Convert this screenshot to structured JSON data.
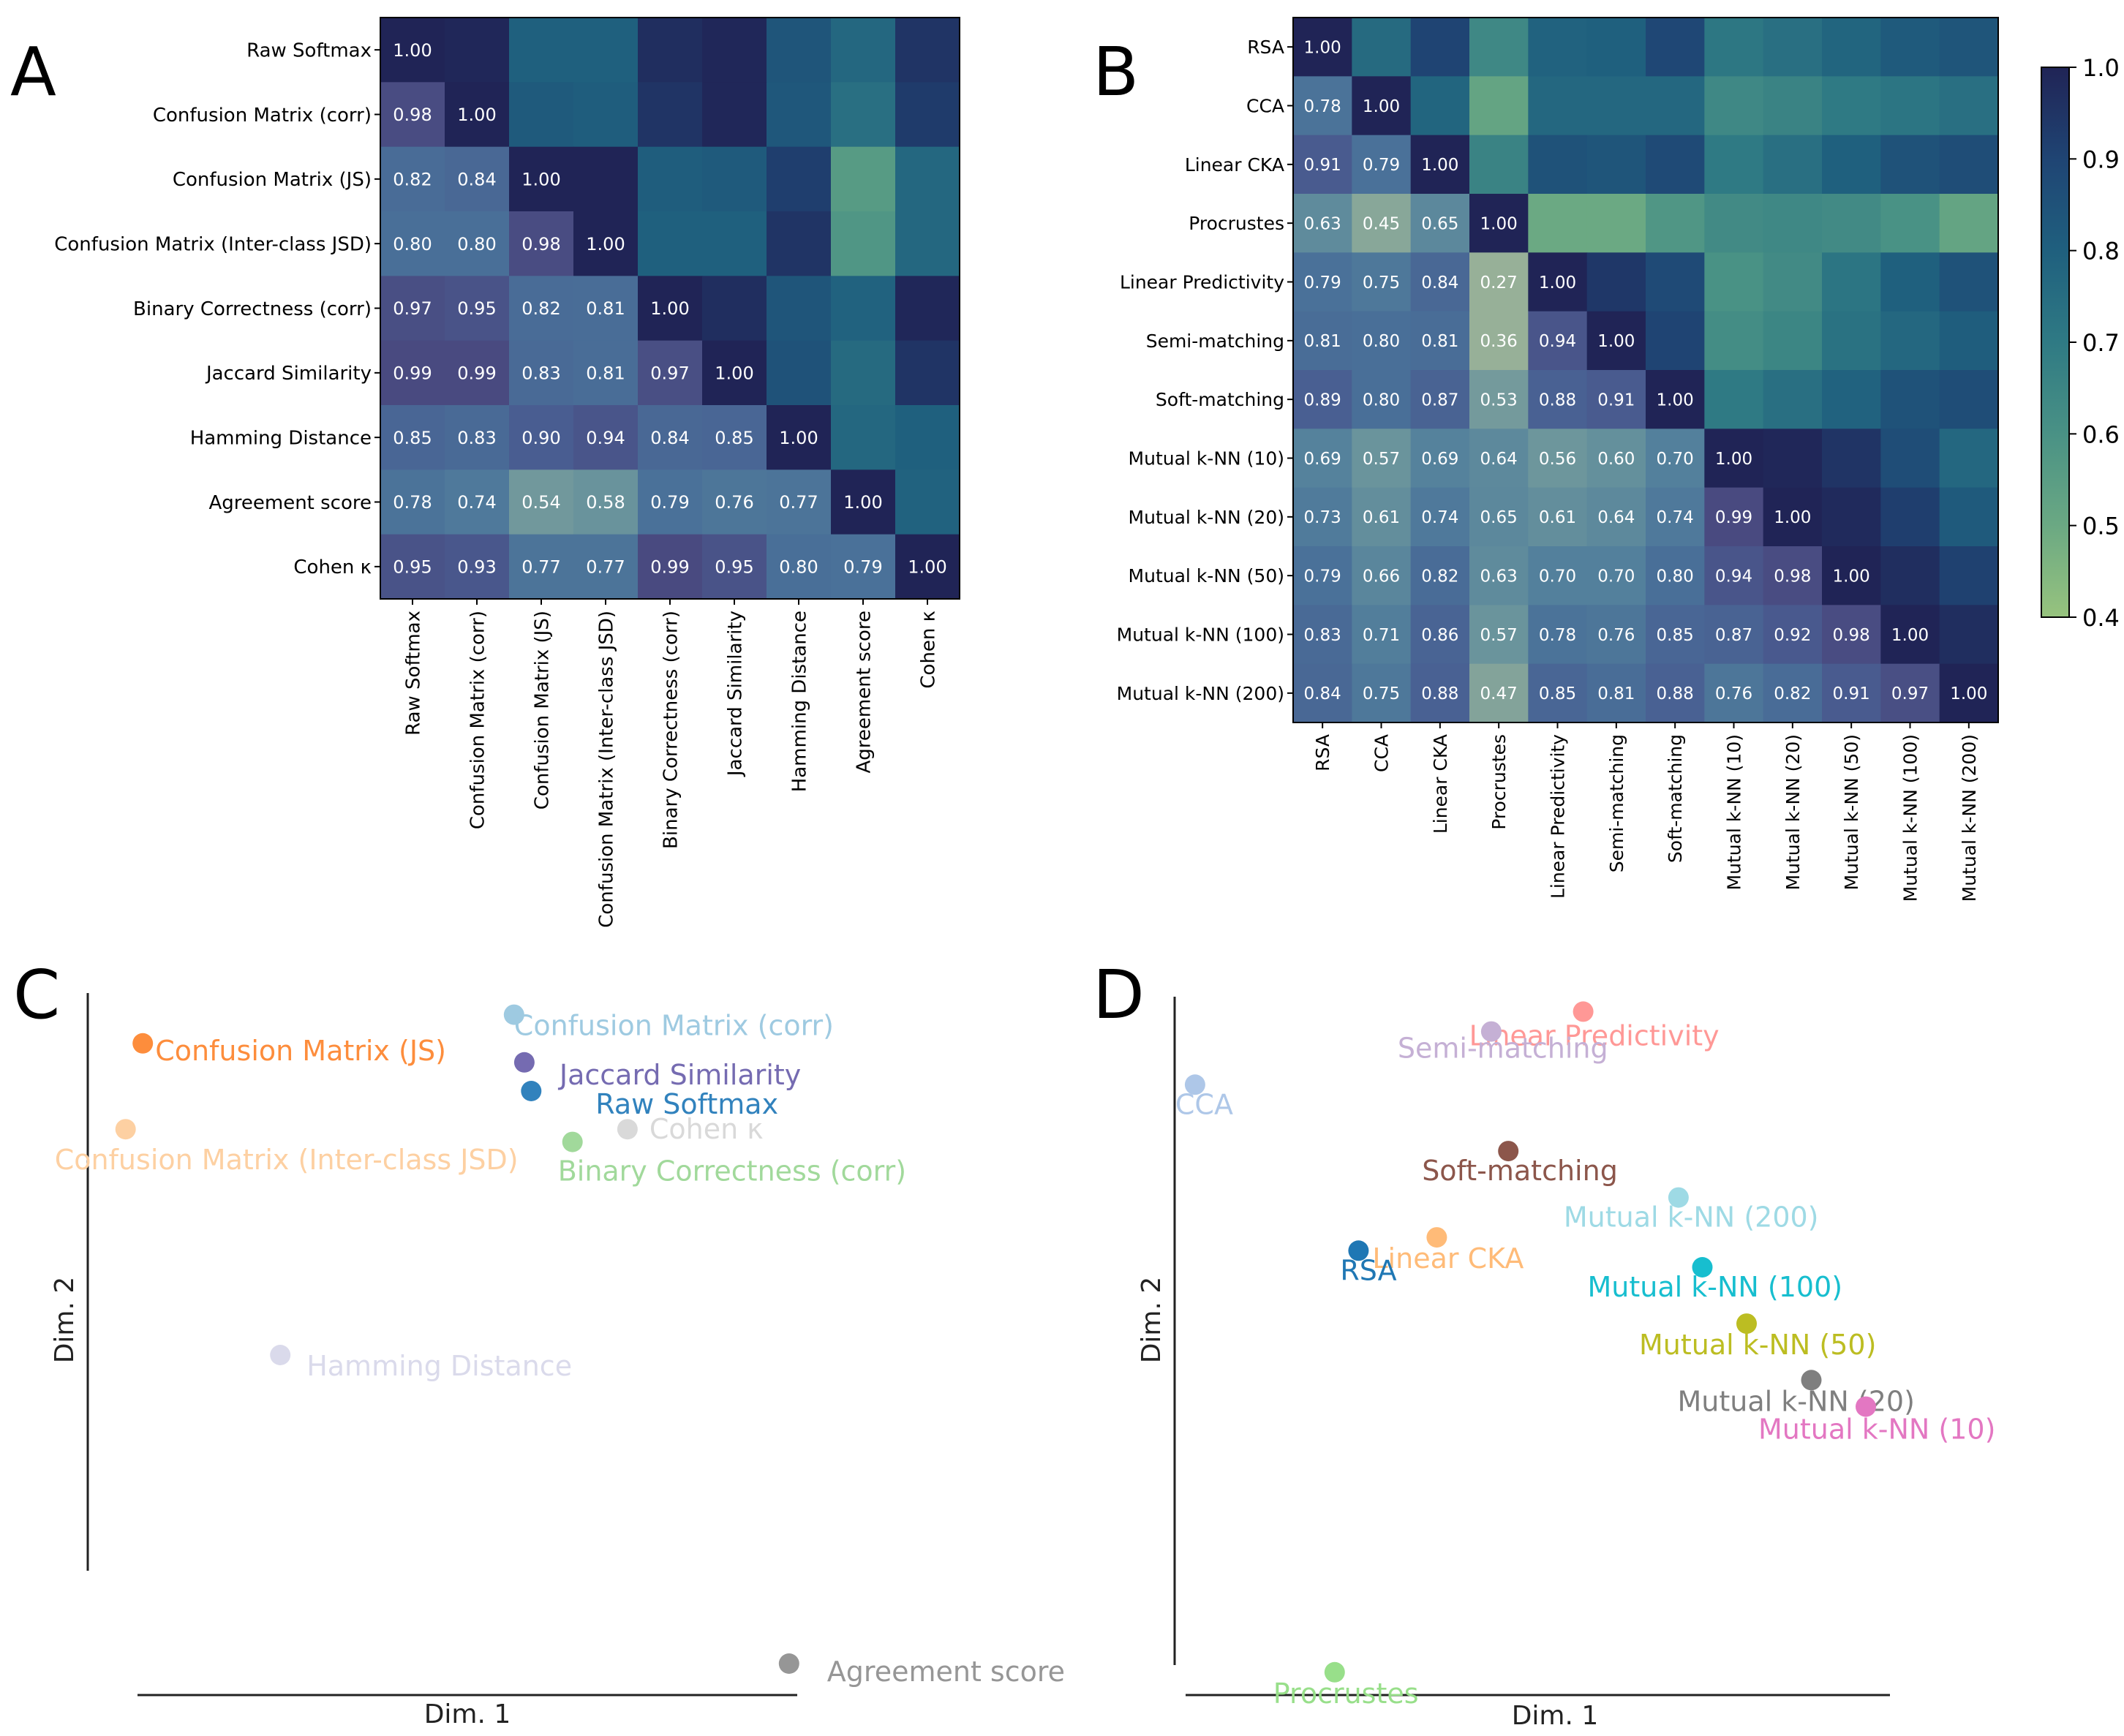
{
  "panel_letters": [
    "A",
    "B",
    "C",
    "D"
  ],
  "colorbar": {
    "ticks": [
      1.0,
      0.9,
      0.8,
      0.7,
      0.6,
      0.5,
      0.4
    ],
    "tick_labels": [
      "1.0",
      "0.9",
      "0.8",
      "0.7",
      "0.6",
      "0.5",
      "0.4"
    ],
    "vmin": 0.4,
    "vmax": 1.0
  },
  "chart_data": [
    {
      "type": "heatmap",
      "panel": "A",
      "labels": [
        "Raw Softmax",
        "Confusion Matrix (corr)",
        "Confusion Matrix (JS)",
        "Confusion Matrix (Inter-class JSD)",
        "Binary Correctness (corr)",
        "Jaccard Similarity",
        "Hamming Distance",
        "Agreement score",
        "Cohen κ"
      ],
      "lower_triangle": [
        [
          "1.00"
        ],
        [
          "0.98",
          "1.00"
        ],
        [
          "0.82",
          "0.84",
          "1.00"
        ],
        [
          "0.80",
          "0.80",
          "0.98",
          "1.00"
        ],
        [
          "0.97",
          "0.95",
          "0.82",
          "0.81",
          "1.00"
        ],
        [
          "0.99",
          "0.99",
          "0.83",
          "0.81",
          "0.97",
          "1.00"
        ],
        [
          "0.85",
          "0.83",
          "0.90",
          "0.94",
          "0.84",
          "0.85",
          "1.00"
        ],
        [
          "0.78",
          "0.74",
          "0.54",
          "0.58",
          "0.79",
          "0.76",
          "0.77",
          "1.00"
        ],
        [
          "0.95",
          "0.93",
          "0.77",
          "0.77",
          "0.99",
          "0.95",
          "0.80",
          "0.79",
          "1.00"
        ]
      ],
      "upper_triangle_estimated": [
        [
          null,
          0.99,
          0.8,
          0.8,
          0.97,
          0.99,
          0.84,
          0.77,
          0.95
        ],
        [
          null,
          null,
          0.82,
          0.81,
          0.95,
          0.99,
          0.83,
          0.74,
          0.93
        ],
        [
          null,
          null,
          null,
          1.0,
          0.81,
          0.82,
          0.92,
          0.56,
          0.77
        ],
        [
          null,
          null,
          null,
          null,
          0.8,
          0.8,
          0.95,
          0.58,
          0.77
        ],
        [
          null,
          null,
          null,
          null,
          null,
          0.97,
          0.84,
          0.79,
          0.99
        ],
        [
          null,
          null,
          null,
          null,
          null,
          null,
          0.85,
          0.76,
          0.95
        ],
        [
          null,
          null,
          null,
          null,
          null,
          null,
          null,
          0.77,
          0.8
        ],
        [
          null,
          null,
          null,
          null,
          null,
          null,
          null,
          null,
          0.79
        ]
      ],
      "vmin": 0.4,
      "vmax": 1.0
    },
    {
      "type": "heatmap",
      "panel": "B",
      "labels": [
        "RSA",
        "CCA",
        "Linear CKA",
        "Procrustes",
        "Linear Predictivity",
        "Semi-matching",
        "Soft-matching",
        "Mutual k-NN (10)",
        "Mutual k-NN (20)",
        "Mutual k-NN (50)",
        "Mutual k-NN (100)",
        "Mutual k-NN (200)"
      ],
      "lower_triangle": [
        [
          "1.00"
        ],
        [
          "0.78",
          "1.00"
        ],
        [
          "0.91",
          "0.79",
          "1.00"
        ],
        [
          "0.63",
          "0.45",
          "0.65",
          "1.00"
        ],
        [
          "0.79",
          "0.75",
          "0.84",
          "0.27",
          "1.00"
        ],
        [
          "0.81",
          "0.80",
          "0.81",
          "0.36",
          "0.94",
          "1.00"
        ],
        [
          "0.89",
          "0.80",
          "0.87",
          "0.53",
          "0.88",
          "0.91",
          "1.00"
        ],
        [
          "0.69",
          "0.57",
          "0.69",
          "0.64",
          "0.56",
          "0.60",
          "0.70",
          "1.00"
        ],
        [
          "0.73",
          "0.61",
          "0.74",
          "0.65",
          "0.61",
          "0.64",
          "0.74",
          "0.99",
          "1.00"
        ],
        [
          "0.79",
          "0.66",
          "0.82",
          "0.63",
          "0.70",
          "0.70",
          "0.80",
          "0.94",
          "0.98",
          "1.00"
        ],
        [
          "0.83",
          "0.71",
          "0.86",
          "0.57",
          "0.78",
          "0.76",
          "0.85",
          "0.87",
          "0.92",
          "0.98",
          "1.00"
        ],
        [
          "0.84",
          "0.75",
          "0.88",
          "0.47",
          "0.85",
          "0.81",
          "0.88",
          "0.76",
          "0.82",
          "0.91",
          "0.97",
          "1.00"
        ]
      ],
      "upper_triangle_estimated": [
        [
          null,
          0.76,
          0.9,
          0.64,
          0.79,
          0.8,
          0.89,
          0.71,
          0.74,
          0.78,
          0.82,
          0.84
        ],
        [
          null,
          null,
          0.78,
          0.52,
          0.77,
          0.77,
          0.77,
          0.64,
          0.66,
          0.7,
          0.72,
          0.74
        ],
        [
          null,
          null,
          null,
          0.66,
          0.85,
          0.84,
          0.88,
          0.7,
          0.74,
          0.8,
          0.85,
          0.87
        ],
        [
          null,
          null,
          null,
          null,
          0.5,
          0.5,
          0.58,
          0.63,
          0.64,
          0.63,
          0.6,
          0.52
        ],
        [
          null,
          null,
          null,
          null,
          null,
          0.94,
          0.88,
          0.6,
          0.63,
          0.72,
          0.8,
          0.85
        ],
        [
          null,
          null,
          null,
          null,
          null,
          null,
          0.9,
          0.62,
          0.65,
          0.73,
          0.77,
          0.81
        ],
        [
          null,
          null,
          null,
          null,
          null,
          null,
          null,
          0.7,
          0.74,
          0.79,
          0.85,
          0.87
        ],
        [
          null,
          null,
          null,
          null,
          null,
          null,
          null,
          null,
          0.99,
          0.95,
          0.87,
          0.77
        ],
        [
          null,
          null,
          null,
          null,
          null,
          null,
          null,
          null,
          null,
          0.98,
          0.92,
          0.82
        ],
        [
          null,
          null,
          null,
          null,
          null,
          null,
          null,
          null,
          null,
          null,
          0.97,
          0.91
        ],
        [
          null,
          null,
          null,
          null,
          null,
          null,
          null,
          null,
          null,
          null,
          null,
          0.97
        ]
      ],
      "vmin": 0.4,
      "vmax": 1.0
    },
    {
      "type": "scatter",
      "panel": "C",
      "xlabel": "Dim. 1",
      "ylabel": "Dim. 2",
      "xlim": [
        0,
        100
      ],
      "ylim": [
        0,
        100
      ],
      "points": [
        {
          "label": "Confusion Matrix (JS)",
          "x": 8.0,
          "y": 97.5,
          "color": "#fd8d3c"
        },
        {
          "label": "Confusion Matrix (Inter-class JSD)",
          "x": 5.5,
          "y": 84.0,
          "color": "#fdd0a2"
        },
        {
          "label": "Confusion Matrix (corr)",
          "x": 62.0,
          "y": 102.0,
          "color": "#9ecae1"
        },
        {
          "label": "Jaccard Similarity",
          "x": 63.5,
          "y": 94.5,
          "color": "#756bb1"
        },
        {
          "label": "Raw Softmax",
          "x": 64.5,
          "y": 90.0,
          "color": "#3182bd"
        },
        {
          "label": "Cohen κ",
          "x": 78.5,
          "y": 84.0,
          "color": "#d9d9d9"
        },
        {
          "label": "Binary Correctness (corr)",
          "x": 70.5,
          "y": 82.0,
          "color": "#a1d99b"
        },
        {
          "label": "Hamming Distance",
          "x": 28.0,
          "y": 48.5,
          "color": "#dadaeb"
        },
        {
          "label": "Agreement score",
          "x": 102.0,
          "y": 0.0,
          "color": "#969696"
        }
      ]
    },
    {
      "type": "scatter",
      "panel": "D",
      "xlabel": "Dim. 1",
      "ylabel": "Dim. 2",
      "xlim": [
        0,
        100
      ],
      "ylim": [
        0,
        100
      ],
      "points": [
        {
          "label": "Linear Predictivity",
          "x": 60.0,
          "y": 101.5,
          "color": "#ff9896"
        },
        {
          "label": "Semi-matching",
          "x": 46.5,
          "y": 98.5,
          "color": "#c5b0d5"
        },
        {
          "label": "CCA",
          "x": 3.0,
          "y": 90.5,
          "color": "#aec7e8"
        },
        {
          "label": "Soft-matching",
          "x": 49.0,
          "y": 80.5,
          "color": "#8c564b"
        },
        {
          "label": "Mutual k-NN (200)",
          "x": 74.0,
          "y": 73.5,
          "color": "#9edae5"
        },
        {
          "label": "Linear CKA",
          "x": 38.5,
          "y": 67.5,
          "color": "#ffbb78"
        },
        {
          "label": "RSA",
          "x": 27.0,
          "y": 65.5,
          "color": "#1f77b4"
        },
        {
          "label": "Mutual k-NN (100)",
          "x": 77.5,
          "y": 63.0,
          "color": "#17becf"
        },
        {
          "label": "Mutual k-NN (50)",
          "x": 84.0,
          "y": 54.5,
          "color": "#bcbd22"
        },
        {
          "label": "Mutual k-NN (20)",
          "x": 93.5,
          "y": 46.0,
          "color": "#7f7f7f"
        },
        {
          "label": "Mutual k-NN (10)",
          "x": 101.5,
          "y": 42.0,
          "color": "#e377c2"
        },
        {
          "label": "Procrustes",
          "x": 23.5,
          "y": 2.0,
          "color": "#98df8a"
        }
      ]
    }
  ]
}
